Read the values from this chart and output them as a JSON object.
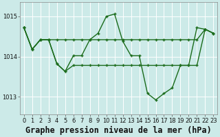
{
  "bg_color": "#cceae8",
  "grid_color": "#ffffff",
  "line_color": "#1a6b1a",
  "marker_color": "#1a6b1a",
  "title": "Graphe pression niveau de la mer (hPa)",
  "ylim": [
    1012.55,
    1015.35
  ],
  "yticks": [
    1013,
    1014,
    1015
  ],
  "xticks": [
    0,
    1,
    2,
    3,
    4,
    5,
    6,
    7,
    8,
    9,
    10,
    11,
    12,
    13,
    14,
    15,
    16,
    17,
    18,
    19,
    20,
    21,
    22,
    23
  ],
  "series": [
    [
      1014.72,
      1014.18,
      1014.42,
      1014.42,
      1013.82,
      1013.63,
      1013.78,
      1013.78,
      1013.78,
      1013.78,
      1013.78,
      1013.78,
      1013.78,
      1013.78,
      1013.78,
      1013.78,
      1013.78,
      1013.78,
      1013.78,
      1013.78,
      1013.78,
      1013.78,
      1014.68,
      1014.58
    ],
    [
      1014.72,
      1014.18,
      1014.42,
      1014.42,
      1014.42,
      1014.42,
      1014.42,
      1014.42,
      1014.42,
      1014.42,
      1014.42,
      1014.42,
      1014.42,
      1014.42,
      1014.42,
      1014.42,
      1014.42,
      1014.42,
      1014.42,
      1014.42,
      1014.42,
      1014.42,
      1014.68,
      1014.58
    ],
    [
      1014.72,
      1014.18,
      1014.42,
      1014.42,
      1013.82,
      1013.63,
      1014.02,
      1014.02,
      1014.42,
      1014.58,
      1015.0,
      1015.06,
      1014.38,
      1014.02,
      1014.02,
      1013.08,
      1012.92,
      1013.08,
      1013.22,
      1013.78,
      1013.78,
      1014.72,
      1014.68,
      1014.58
    ]
  ],
  "title_fontsize": 8.5,
  "tick_fontsize": 6.0,
  "line_width": 1.0,
  "marker_size": 3.5
}
